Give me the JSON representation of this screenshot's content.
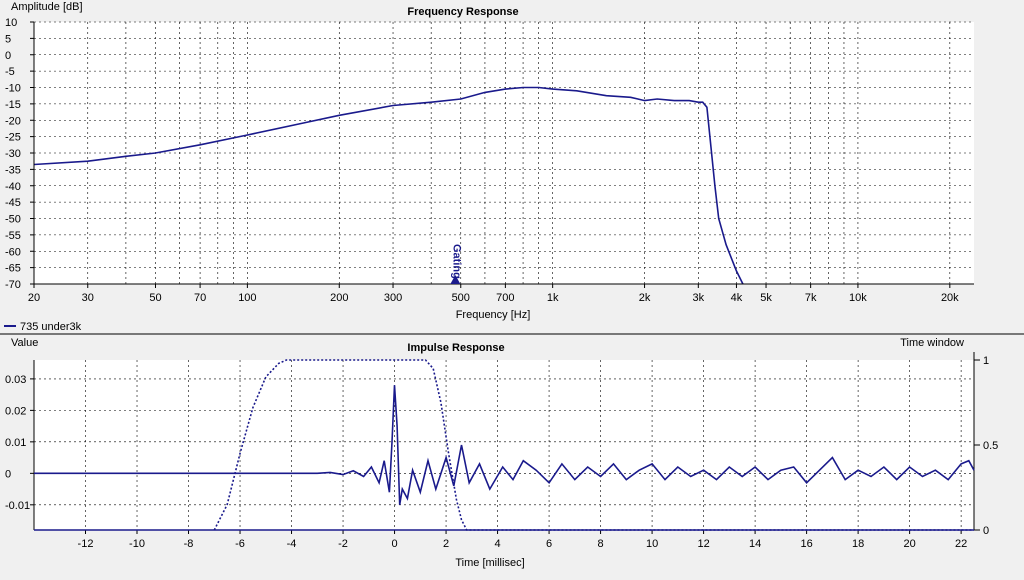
{
  "colors": {
    "background": "#f0f0f0",
    "plot_background": "#ffffff",
    "grid": "#000000",
    "trace": "#1a1a8c",
    "axis_text": "#000000"
  },
  "chart_data": [
    {
      "type": "line",
      "title": "Frequency Response",
      "xlabel": "Frequency [Hz]",
      "ylabel": "Amplitude [dB]",
      "xscale": "log",
      "xlim": [
        20,
        24000
      ],
      "ylim": [
        -70,
        10
      ],
      "grid": true,
      "x_ticks": [
        20,
        30,
        50,
        70,
        100,
        200,
        300,
        500,
        700,
        1000,
        2000,
        3000,
        4000,
        5000,
        7000,
        10000,
        20000
      ],
      "x_tick_labels": [
        "20",
        "30",
        "50",
        "70",
        "100",
        "200",
        "300",
        "500",
        "700",
        "1k",
        "2k",
        "3k",
        "4k",
        "5k",
        "7k",
        "10k",
        "20k"
      ],
      "y_ticks": [
        10,
        5,
        0,
        -5,
        -10,
        -15,
        -20,
        -25,
        -30,
        -35,
        -40,
        -45,
        -50,
        -55,
        -60,
        -65,
        -70
      ],
      "y_tick_labels": [
        "10",
        "5",
        "0",
        "-5",
        "-10",
        "-15",
        "-20",
        "-25",
        "-30",
        "-35",
        "-40",
        "-45",
        "-50",
        "-55",
        "-60",
        "-65",
        "-70"
      ],
      "legend": {
        "entries": [
          "735 under3k"
        ],
        "placement": "bottom-left"
      },
      "annotations": [
        {
          "text": "Gating",
          "x": 480
        }
      ],
      "series": [
        {
          "name": "735 under3k",
          "x": [
            20,
            30,
            40,
            50,
            70,
            100,
            150,
            200,
            300,
            400,
            500,
            600,
            700,
            800,
            900,
            1000,
            1200,
            1500,
            1800,
            2000,
            2200,
            2500,
            2800,
            3000,
            3100,
            3200,
            3300,
            3400,
            3500,
            3700,
            4000,
            4200
          ],
          "y": [
            -33.5,
            -32.5,
            -31,
            -30,
            -27.5,
            -24.5,
            -21,
            -18.5,
            -15.5,
            -14.5,
            -13.5,
            -11.5,
            -10.5,
            -10,
            -10,
            -10.5,
            -11,
            -12.5,
            -13,
            -14,
            -13.5,
            -14,
            -14,
            -14.5,
            -14.5,
            -16,
            -28,
            -40,
            -50,
            -58,
            -66,
            -70
          ]
        }
      ]
    },
    {
      "type": "line",
      "title": "Impulse Response",
      "xlabel": "Time [millisec]",
      "ylabel": "Value",
      "y2label": "Time window",
      "xlim": [
        -14,
        22.5
      ],
      "ylim": [
        -0.018,
        0.036
      ],
      "y2lim": [
        0,
        1
      ],
      "grid": true,
      "x_ticks": [
        -12,
        -10,
        -8,
        -6,
        -4,
        -2,
        0,
        2,
        4,
        6,
        8,
        10,
        12,
        14,
        16,
        18,
        20,
        22
      ],
      "x_tick_labels": [
        "-12",
        "-10",
        "-8",
        "-6",
        "-4",
        "-2",
        "0",
        "2",
        "4",
        "6",
        "8",
        "10",
        "12",
        "14",
        "16",
        "18",
        "20",
        "22"
      ],
      "y_ticks": [
        0.03,
        0.02,
        0.01,
        0,
        -0.01
      ],
      "y_tick_labels": [
        "0.03",
        "0.02",
        "0.01",
        "0",
        "-0.01"
      ],
      "y2_ticks": [
        1,
        0.5,
        0
      ],
      "y2_tick_labels": [
        "1",
        "0.5",
        "0"
      ],
      "series": [
        {
          "role": "impulse",
          "x": [
            -14,
            -3,
            -2.5,
            -2,
            -1.6,
            -1.2,
            -0.9,
            -0.6,
            -0.4,
            -0.2,
            -0.1,
            0,
            0.1,
            0.2,
            0.3,
            0.5,
            0.7,
            1.0,
            1.3,
            1.6,
            2.0,
            2.3,
            2.6,
            2.9,
            3.3,
            3.7,
            4.2,
            4.6,
            5.0,
            5.5,
            6.0,
            6.5,
            7.0,
            7.5,
            8.0,
            8.5,
            9.0,
            9.5,
            10.0,
            10.5,
            11.0,
            11.5,
            12.0,
            12.5,
            13.0,
            13.5,
            14.0,
            14.5,
            15.0,
            15.5,
            16.0,
            16.5,
            17.0,
            17.5,
            18.0,
            18.5,
            19.0,
            19.5,
            20.0,
            20.5,
            21.0,
            21.5,
            22.0,
            22.3,
            22.5
          ],
          "y": [
            0,
            0,
            0.0003,
            -0.0004,
            0.0008,
            -0.001,
            0.002,
            -0.003,
            0.004,
            -0.006,
            0.01,
            0.028,
            0.015,
            -0.01,
            -0.005,
            -0.008,
            0.001,
            -0.006,
            0.004,
            -0.005,
            0.005,
            -0.004,
            0.009,
            -0.003,
            0.003,
            -0.005,
            0.002,
            -0.002,
            0.004,
            0.001,
            -0.003,
            0.003,
            -0.002,
            0.002,
            -0.001,
            0.003,
            -0.002,
            0.001,
            0.003,
            -0.002,
            0.002,
            -0.001,
            0.001,
            -0.002,
            0.002,
            -0.001,
            0.002,
            -0.002,
            0.001,
            0.002,
            -0.003,
            0.001,
            0.005,
            -0.002,
            0.001,
            -0.001,
            0.002,
            -0.002,
            0.002,
            -0.001,
            0.001,
            -0.002,
            0.003,
            0.004,
            0.001
          ]
        },
        {
          "role": "window",
          "axis": "y2",
          "x": [
            -7,
            -6.5,
            -6,
            -5.5,
            -5,
            -4.5,
            -4.2,
            1.2,
            1.5,
            1.8,
            2.1,
            2.4,
            2.6,
            2.8,
            22.5
          ],
          "y": [
            0,
            0.15,
            0.45,
            0.72,
            0.9,
            0.98,
            1,
            1,
            0.95,
            0.75,
            0.45,
            0.18,
            0.06,
            0,
            0
          ]
        }
      ]
    }
  ]
}
